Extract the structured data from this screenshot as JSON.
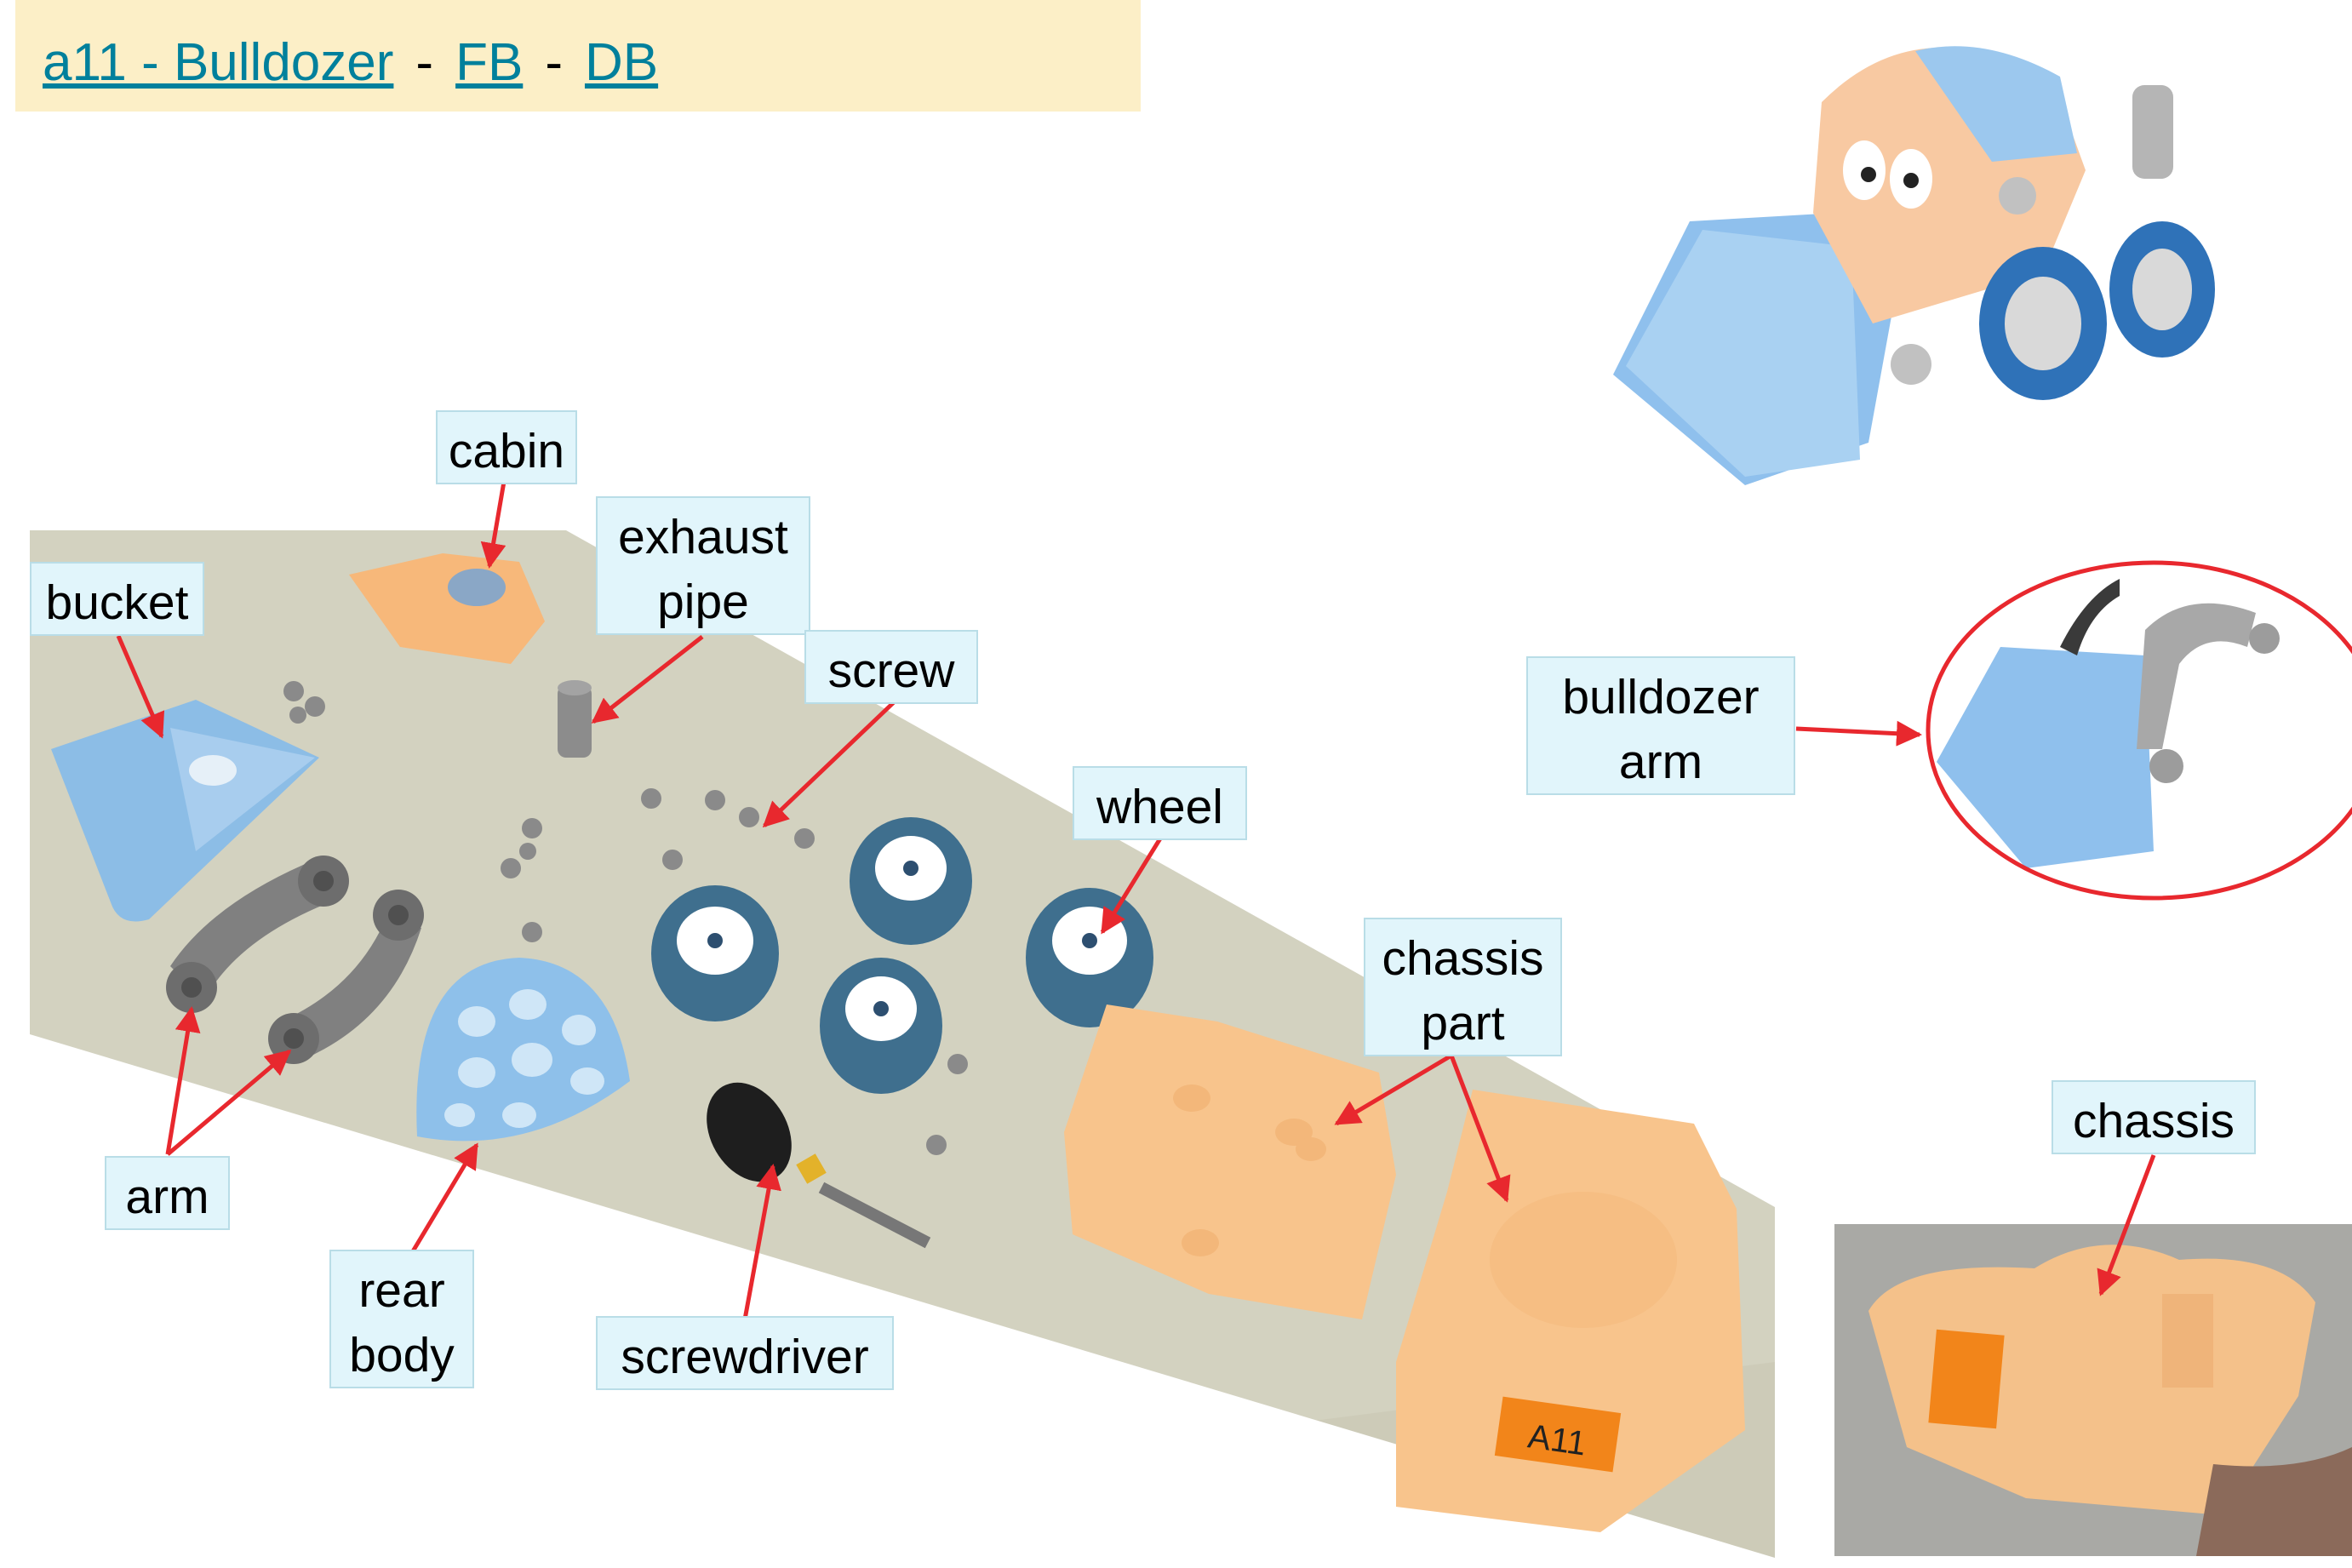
{
  "header": {
    "title_link": "a11 - Bulldozer",
    "separator": "-",
    "fb_link": "FB",
    "db_link": "DB"
  },
  "labels": {
    "cabin": "cabin",
    "exhaust_line1": "exhaust",
    "exhaust_line2": "pipe",
    "bucket": "bucket",
    "screw": "screw",
    "wheel": "wheel",
    "chassis_part_line1": "chassis",
    "chassis_part_line2": "part",
    "arm": "arm",
    "rear_body_line1": "rear",
    "rear_body_line2": "body",
    "screwdriver": "screwdriver",
    "bulldozer_arm_line1": "bulldozer",
    "bulldozer_arm_line2": "arm",
    "chassis": "chassis"
  },
  "part_sticker_text": "A11",
  "colors": {
    "header_bg": "#fcefc7",
    "link": "#00809c",
    "label_bg": "#e1f5fb",
    "arrow": "#e8282e"
  }
}
